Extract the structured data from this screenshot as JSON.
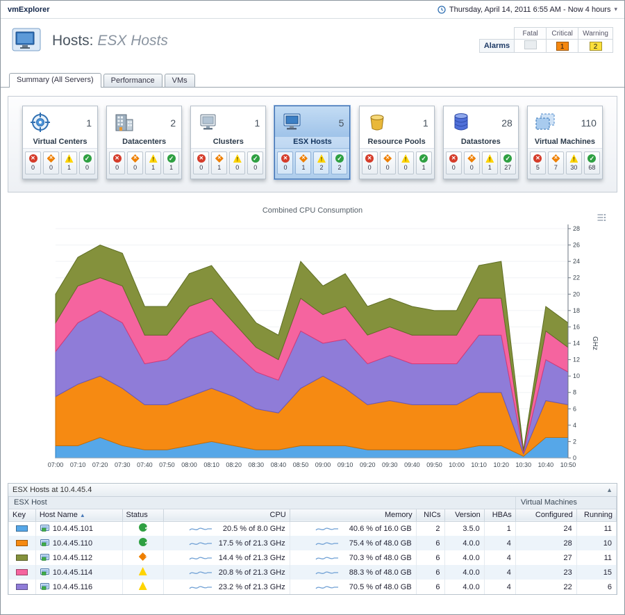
{
  "app": {
    "name": "vmExplorer",
    "time_range": "Thursday, April 14, 2011 6:55 AM - Now 4 hours"
  },
  "header": {
    "title": "Hosts:",
    "subtitle": "ESX Hosts",
    "alarm_summary": {
      "row_label": "Alarms",
      "columns": [
        "Fatal",
        "Critical",
        "Warning"
      ],
      "fatal": "",
      "critical": "1",
      "warning": "2"
    }
  },
  "tabs": [
    {
      "label": "Summary (All Servers)"
    },
    {
      "label": "Performance"
    },
    {
      "label": "VMs"
    }
  ],
  "tiles": [
    {
      "label": "Virtual Centers",
      "count": "1",
      "icon": "virtual-centers-icon",
      "fatal": "0",
      "critical": "0",
      "warning": "1",
      "normal": "0"
    },
    {
      "label": "Datacenters",
      "count": "2",
      "icon": "datacenters-icon",
      "fatal": "0",
      "critical": "0",
      "warning": "1",
      "normal": "1"
    },
    {
      "label": "Clusters",
      "count": "1",
      "icon": "clusters-icon",
      "fatal": "0",
      "critical": "1",
      "warning": "0",
      "normal": "0"
    },
    {
      "label": "ESX Hosts",
      "count": "5",
      "icon": "esx-hosts-icon",
      "selected": true,
      "fatal": "0",
      "critical": "1",
      "warning": "2",
      "normal": "2"
    },
    {
      "label": "Resource Pools",
      "count": "1",
      "icon": "resource-pools-icon",
      "fatal": "0",
      "critical": "0",
      "warning": "0",
      "normal": "1"
    },
    {
      "label": "Datastores",
      "count": "28",
      "icon": "datastores-icon",
      "fatal": "0",
      "critical": "0",
      "warning": "1",
      "normal": "27"
    },
    {
      "label": "Virtual Machines",
      "count": "110",
      "icon": "virtual-machines-icon",
      "fatal": "5",
      "critical": "7",
      "warning": "30",
      "normal": "68"
    }
  ],
  "chart_data": {
    "type": "area",
    "stacked": true,
    "title": "Combined CPU Consumption",
    "ylabel": "GHz",
    "ylim": [
      0,
      28
    ],
    "y_tick_step": 2,
    "grid": false,
    "legend_position": "none",
    "x": [
      "07:00",
      "07:10",
      "07:20",
      "07:30",
      "07:40",
      "07:50",
      "08:00",
      "08:10",
      "08:20",
      "08:30",
      "08:40",
      "08:50",
      "09:00",
      "09:10",
      "09:20",
      "09:30",
      "09:40",
      "09:50",
      "10:00",
      "10:10",
      "10:20",
      "10:30",
      "10:40",
      "10:50"
    ],
    "series": [
      {
        "name": "10.4.45.101",
        "color": "#56a7e8",
        "edge": "#2a7cc0",
        "values": [
          1.5,
          1.5,
          2.5,
          1.5,
          1,
          1,
          1.5,
          2,
          1.5,
          1,
          1,
          1.5,
          1.5,
          1.5,
          1,
          1,
          1,
          1,
          1,
          1.5,
          1.5,
          0.2,
          2.5,
          2.5
        ]
      },
      {
        "name": "10.4.45.110",
        "color": "#f68a12",
        "edge": "#c96d00",
        "values": [
          6,
          7.5,
          7.5,
          7,
          5.5,
          5.5,
          6,
          6.5,
          6,
          5,
          4.5,
          7,
          8.5,
          7,
          5.5,
          6,
          5.5,
          5.5,
          5.5,
          6.5,
          6.5,
          0.3,
          4.5,
          4
        ]
      },
      {
        "name": "10.4.45.116",
        "color": "#8f7cd8",
        "edge": "#6a57b5",
        "values": [
          5.5,
          7.5,
          8,
          8,
          5,
          5.5,
          7,
          7,
          5.5,
          4.5,
          4,
          7,
          4,
          6,
          5,
          5.5,
          5,
          5,
          5,
          7,
          7,
          0.2,
          5,
          4
        ]
      },
      {
        "name": "10.4.45.114",
        "color": "#f5649f",
        "edge": "#d23a78",
        "values": [
          3.5,
          4.5,
          4,
          4.5,
          3.5,
          3,
          4,
          4,
          3.5,
          3,
          2.5,
          4,
          3.5,
          4,
          3.5,
          3.5,
          3.5,
          3.5,
          3.5,
          4.5,
          4.5,
          0.2,
          3.5,
          3
        ]
      },
      {
        "name": "10.4.45.112",
        "color": "#84913c",
        "edge": "#5f6e24",
        "values": [
          3.5,
          3.5,
          4,
          4,
          3.5,
          3.5,
          4,
          4,
          3.5,
          3,
          3,
          4.5,
          3.5,
          4,
          3.5,
          3.5,
          3.5,
          3,
          3,
          4,
          4.5,
          0.1,
          3,
          3
        ]
      }
    ]
  },
  "host_table": {
    "panel_title": "ESX Hosts at 10.4.45.4",
    "group_left": "ESX Host",
    "group_right": "Virtual Machines",
    "columns": [
      "Key",
      "Host Name",
      "Status",
      "CPU",
      "Memory",
      "NICs",
      "Version",
      "HBAs",
      "Configured",
      "Running"
    ],
    "rows": [
      {
        "key_color": "#56a7e8",
        "host": "10.4.45.101",
        "status": "normal",
        "cpu": "20.5 % of 8.0 GHz",
        "memory": "40.6 % of 16.0 GB",
        "nics": "2",
        "version": "3.5.0",
        "hbas": "1",
        "configured": "24",
        "running": "11"
      },
      {
        "key_color": "#f68a12",
        "host": "10.4.45.110",
        "status": "normal",
        "cpu": "17.5 % of 21.3 GHz",
        "memory": "75.4 % of 48.0 GB",
        "nics": "6",
        "version": "4.0.0",
        "hbas": "4",
        "configured": "28",
        "running": "10"
      },
      {
        "key_color": "#84913c",
        "host": "10.4.45.112",
        "status": "critical",
        "cpu": "14.4 % of 21.3 GHz",
        "memory": "70.3 % of 48.0 GB",
        "nics": "6",
        "version": "4.0.0",
        "hbas": "4",
        "configured": "27",
        "running": "11"
      },
      {
        "key_color": "#f5649f",
        "host": "10.4.45.114",
        "status": "warning",
        "cpu": "20.8 % of 21.3 GHz",
        "memory": "88.3 % of 48.0 GB",
        "nics": "6",
        "version": "4.0.0",
        "hbas": "4",
        "configured": "23",
        "running": "15"
      },
      {
        "key_color": "#8f7cd8",
        "host": "10.4.45.116",
        "status": "warning",
        "cpu": "23.2 % of 21.3 GHz",
        "memory": "70.5 % of 48.0 GB",
        "nics": "6",
        "version": "4.0.0",
        "hbas": "4",
        "configured": "22",
        "running": "6"
      }
    ]
  },
  "icons": {
    "sort_asc": "▲",
    "scroll_up": "▲",
    "time_dropdown": "▾"
  }
}
